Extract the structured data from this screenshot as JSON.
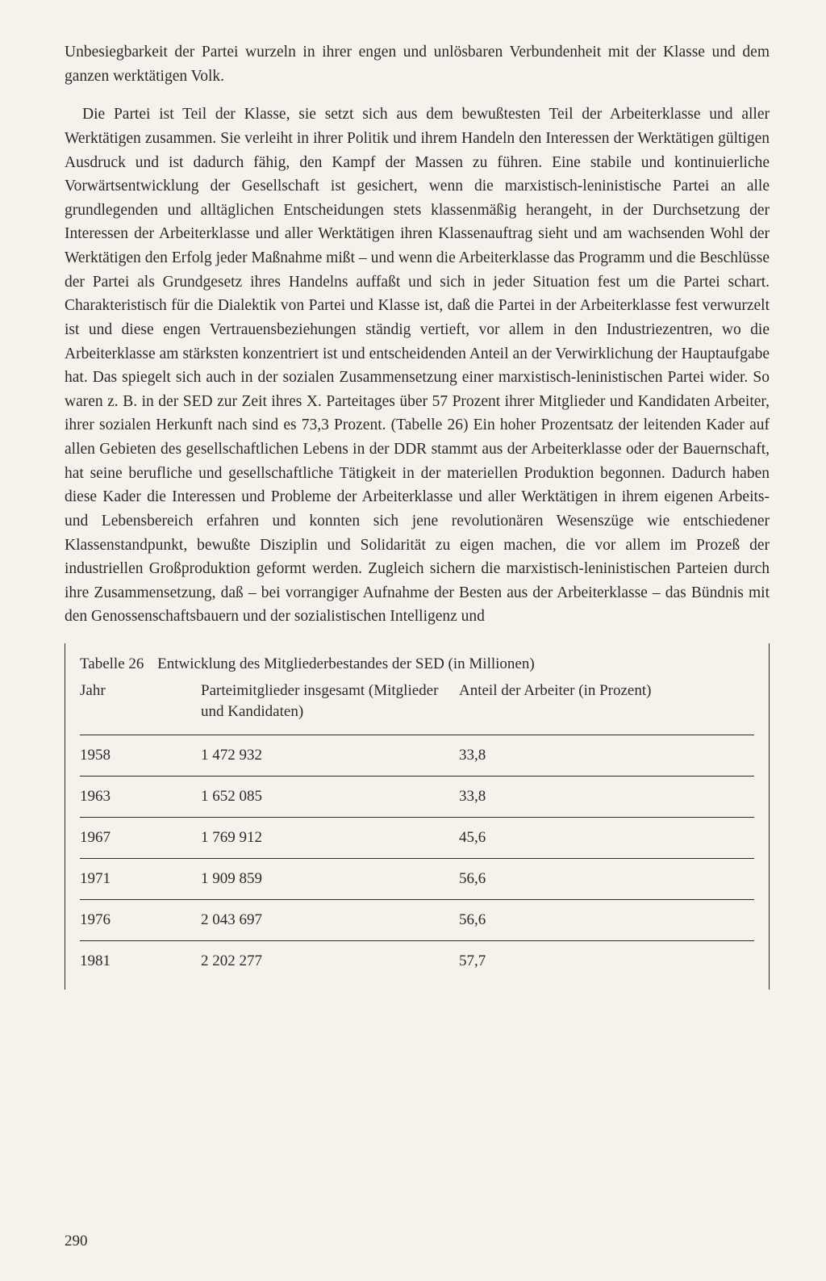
{
  "paragraphs": {
    "p1": "Unbesiegbarkeit der Partei wurzeln in ihrer engen und unlösbaren Verbundenheit mit der Klasse und dem ganzen werktätigen Volk.",
    "p2": "Die Partei ist Teil der Klasse, sie setzt sich aus dem bewußtesten Teil der Arbeiterklasse und aller Werktätigen zusammen. Sie verleiht in ihrer Politik und ihrem Handeln den Interessen der Werktätigen gültigen Ausdruck und ist dadurch fähig, den Kampf der Massen zu führen. Eine stabile und kontinuierliche Vorwärtsentwicklung der Gesellschaft ist gesichert, wenn die marxistisch-leninistische Partei an alle grundlegenden und alltäglichen Entscheidungen stets klassenmäßig herangeht, in der Durchsetzung der Interessen der Arbeiterklasse und aller Werktätigen ihren Klassenauftrag sieht und am wachsenden Wohl der Werktätigen den Erfolg jeder Maßnahme mißt – und wenn die Arbeiterklasse das Programm und die Beschlüsse der Partei als Grundgesetz ihres Handelns auffaßt und sich in jeder Situation fest um die Partei schart. Charakteristisch für die Dialektik von Partei und Klasse ist, daß die Partei in der Arbeiterklasse fest verwurzelt ist und diese engen Vertrauensbeziehungen ständig vertieft, vor allem in den Industriezentren, wo die Arbeiterklasse am stärksten konzentriert ist und entscheidenden Anteil an der Verwirklichung der Hauptaufgabe hat. Das spiegelt sich auch in der sozialen Zusammensetzung einer marxistisch-leninistischen Partei wider. So waren z. B. in der SED zur Zeit ihres X. Parteitages über 57 Prozent ihrer Mitglieder und Kandidaten Arbeiter, ihrer sozialen Herkunft nach sind es 73,3 Prozent. (Tabelle 26) Ein hoher Prozentsatz der leitenden Kader auf allen Gebieten des gesellschaftlichen Lebens in der DDR stammt aus der Arbeiterklasse oder der Bauernschaft, hat seine berufliche und gesellschaftliche Tätigkeit in der materiellen Produktion begonnen. Dadurch haben diese Kader die Interessen und Probleme der Arbeiterklasse und aller Werktätigen in ihrem eigenen Arbeits- und Lebensbereich erfahren und konnten sich jene revolutionären Wesenszüge wie entschiedener Klassenstandpunkt, bewußte Disziplin und Solidarität zu eigen machen, die vor allem im Prozeß der industriellen Großproduktion geformt werden. Zugleich sichern die marxistisch-leninistischen Parteien durch ihre Zusammensetzung, daß – bei vorrangiger Aufnahme der Besten aus der Arbeiterklasse – das Bündnis mit den Genossenschaftsbauern und der sozialistischen Intelligenz und"
  },
  "table": {
    "type": "table",
    "label": "Tabelle 26",
    "title": "Entwicklung des Mitgliederbestandes der SED (in Millionen)",
    "columns": {
      "year": "Jahr",
      "members": "Parteimitglieder insgesamt (Mitglieder und Kandidaten)",
      "percent": "Anteil der Arbeiter (in Prozent)"
    },
    "rows": [
      {
        "year": "1958",
        "members": "1 472 932",
        "percent": "33,8"
      },
      {
        "year": "1963",
        "members": "1 652 085",
        "percent": "33,8"
      },
      {
        "year": "1967",
        "members": "1 769 912",
        "percent": "45,6"
      },
      {
        "year": "1971",
        "members": "1 909 859",
        "percent": "56,6"
      },
      {
        "year": "1976",
        "members": "2 043 697",
        "percent": "56,6"
      },
      {
        "year": "1981",
        "members": "2 202 277",
        "percent": "57,7"
      }
    ],
    "border_color": "#2a2a2a",
    "font_size": 19,
    "col_widths": {
      "year": 150,
      "members": 320
    }
  },
  "page_number": "290",
  "colors": {
    "background": "#f5f2ec",
    "text": "#2a2a2a"
  },
  "typography": {
    "body_font_size": 19.5,
    "line_height": 1.52,
    "font_family": "Georgia, Times New Roman, serif"
  }
}
